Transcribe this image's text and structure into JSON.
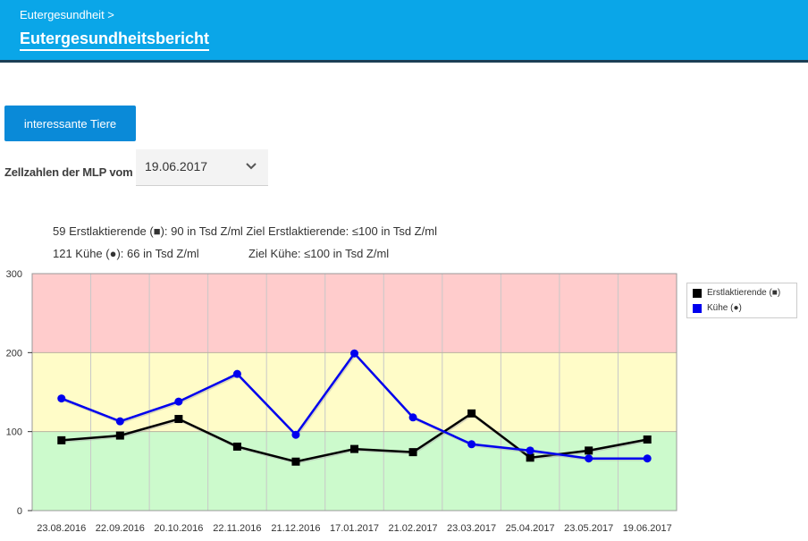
{
  "header": {
    "breadcrumb": "Eutergesundheit >",
    "title": "Eutergesundheitsbericht"
  },
  "buttons": {
    "interesting_animals": "interessante Tiere"
  },
  "mlp": {
    "label": "Zellzahlen der MLP vom",
    "selected_date": "19.06.2017"
  },
  "info": {
    "line1": "59 Erstlaktierende (■): 90 in Tsd Z/ml Ziel Erstlaktierende: ≤100 in Tsd Z/ml",
    "line2a": "121 Kühe (●): 66 in Tsd Z/ml",
    "line2b": "Ziel Kühe: ≤100 in Tsd Z/ml"
  },
  "colors": {
    "header_bg": "#0aa6e8",
    "button_bg": "#0a8ad8",
    "band_green": "#ccfacc",
    "band_yellow": "#fffcc8",
    "band_red": "#ffcccc",
    "series_first": "#000000",
    "series_cows": "#0000ee"
  },
  "chart_data": {
    "type": "line",
    "categories": [
      "23.08.2016",
      "22.09.2016",
      "20.10.2016",
      "22.11.2016",
      "21.12.2016",
      "17.01.2017",
      "21.02.2017",
      "23.03.2017",
      "25.04.2017",
      "23.05.2017",
      "19.06.2017"
    ],
    "series": [
      {
        "name": "Erstlaktierende (■)",
        "marker": "square",
        "color": "#000000",
        "values": [
          89,
          95,
          116,
          81,
          62,
          78,
          74,
          123,
          67,
          76,
          90
        ]
      },
      {
        "name": "Kühe (●)",
        "marker": "circle",
        "color": "#0000ee",
        "values": [
          142,
          113,
          138,
          173,
          96,
          199,
          118,
          84,
          76,
          66,
          66
        ]
      }
    ],
    "bands": [
      {
        "from": 0,
        "to": 100,
        "color": "#ccfacc"
      },
      {
        "from": 100,
        "to": 200,
        "color": "#fffcc8"
      },
      {
        "from": 200,
        "to": 300,
        "color": "#ffcccc"
      }
    ],
    "ylim": [
      0,
      300
    ],
    "yticks": [
      0,
      100,
      200,
      300
    ],
    "grid": true,
    "legend_position": "top-right"
  }
}
